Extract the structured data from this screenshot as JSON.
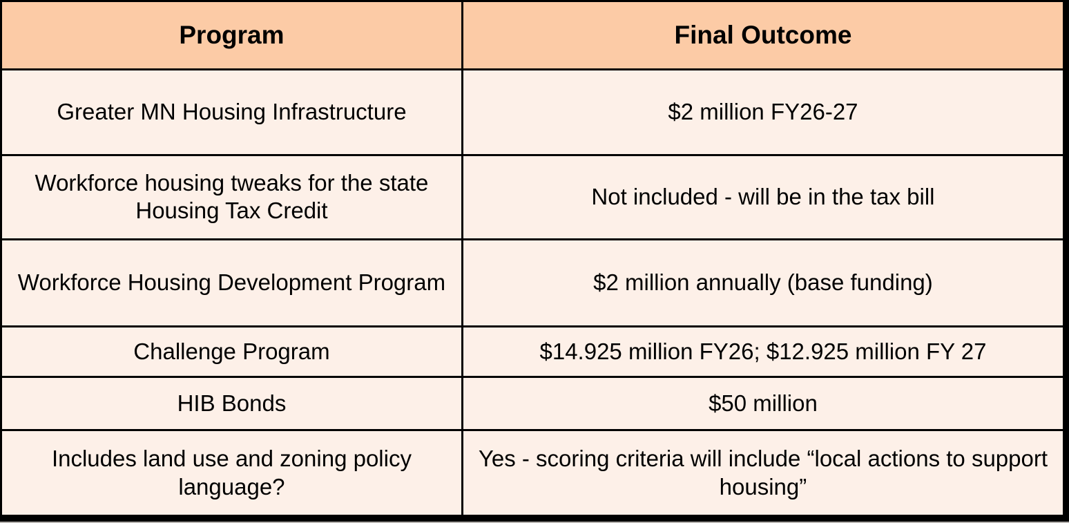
{
  "table": {
    "columns": [
      {
        "label": "Program"
      },
      {
        "label": "Final Outcome"
      }
    ],
    "rows": [
      {
        "program": "Greater MN Housing Infrastructure",
        "outcome": "$2 million FY26-27"
      },
      {
        "program": "Workforce housing tweaks for the state Housing Tax Credit",
        "outcome": "Not included - will be in the tax bill"
      },
      {
        "program": "Workforce Housing Development Program",
        "outcome": "$2 million annually (base funding)"
      },
      {
        "program": "Challenge Program",
        "outcome": "$14.925 million FY26; $12.925 million FY 27"
      },
      {
        "program": "HIB Bonds",
        "outcome": "$50 million"
      },
      {
        "program": "Includes land use and zoning policy language?",
        "outcome": "Yes - scoring criteria will include “local actions to support housing”"
      }
    ],
    "colors": {
      "header_bg": "#fccba6",
      "row_bg": "#fdf0e8",
      "grid_border": "#000000",
      "text": "#000000"
    }
  }
}
